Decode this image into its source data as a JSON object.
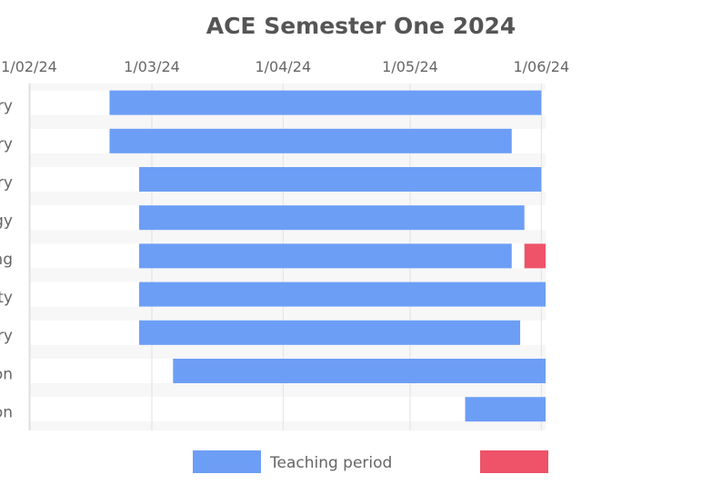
{
  "chart_data": {
    "type": "gantt",
    "title": "ACE Semester One 2024",
    "x_axis": {
      "type": "date",
      "tick_labels": [
        "1/02/24",
        "1/03/24",
        "1/04/24",
        "1/05/24",
        "1/06/24"
      ],
      "tick_dates": [
        "2024-02-01",
        "2024-03-01",
        "2024-04-01",
        "2024-05-01",
        "2024-06-01"
      ]
    },
    "categories": [
      "ry",
      "ry",
      "ry",
      "gy",
      "ng",
      "ty",
      "ry",
      "on",
      "on"
    ],
    "series": [
      {
        "name": "Teaching period",
        "color": "#6c9ef5",
        "bars": [
          {
            "row": 0,
            "start": "2024-02-20",
            "end": "2024-06-01"
          },
          {
            "row": 1,
            "start": "2024-02-20",
            "end": "2024-05-25"
          },
          {
            "row": 2,
            "start": "2024-02-27",
            "end": "2024-06-01"
          },
          {
            "row": 3,
            "start": "2024-02-27",
            "end": "2024-05-28"
          },
          {
            "row": 4,
            "start": "2024-02-27",
            "end": "2024-05-25"
          },
          {
            "row": 5,
            "start": "2024-02-27",
            "end": "2024-06-02"
          },
          {
            "row": 6,
            "start": "2024-02-27",
            "end": "2024-05-27"
          },
          {
            "row": 7,
            "start": "2024-03-06",
            "end": "2024-06-02"
          },
          {
            "row": 8,
            "start": "2024-05-14",
            "end": "2024-06-02"
          }
        ]
      },
      {
        "name": "",
        "color": "#ee5369",
        "bars": [
          {
            "row": 4,
            "start": "2024-05-28",
            "end": "2024-06-02"
          }
        ]
      }
    ],
    "legend": {
      "position": "bottom",
      "items": [
        "Teaching period",
        ""
      ]
    },
    "grid": true
  }
}
